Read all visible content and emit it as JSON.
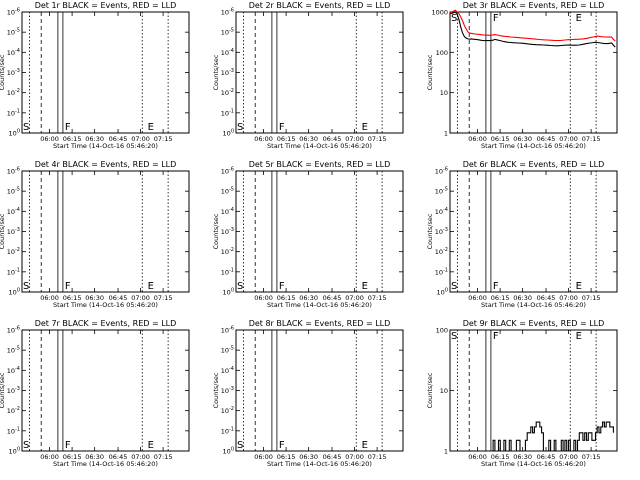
{
  "chart_data": [
    {
      "type": "line",
      "title": "Det 1r BLACK = Events, RED = LLD",
      "ylabel": "Counts/sec",
      "xlabel": "Start Time (14-Oct-16 05:46:20)",
      "yscale": "log",
      "ytick_labels": [
        "10^0",
        "10^-1",
        "10^-2",
        "10^-3",
        "10^-4",
        "10^-5",
        "10^-6"
      ],
      "xtick_labels": [
        "06:00",
        "06:15",
        "06:30",
        "06:45",
        "07:00",
        "07:15"
      ],
      "markers": [
        "S",
        "F",
        "E"
      ],
      "series": []
    },
    {
      "type": "line",
      "title": "Det 2r BLACK = Events, RED = LLD",
      "ylabel": "Counts/sec",
      "xlabel": "Start Time (14-Oct-16 05:46:20)",
      "yscale": "log",
      "ytick_labels": [
        "10^0",
        "10^-1",
        "10^-2",
        "10^-3",
        "10^-4",
        "10^-5",
        "10^-6"
      ],
      "xtick_labels": [
        "06:00",
        "06:15",
        "06:30",
        "06:45",
        "07:00",
        "07:15"
      ],
      "markers": [
        "S",
        "F",
        "E"
      ],
      "series": []
    },
    {
      "type": "line",
      "title": "Det 3r BLACK = Events, RED = LLD",
      "ylabel": "Counts/sec",
      "xlabel": "Start Time (14-Oct-16 05:46:20)",
      "yscale": "log",
      "ytick_labels": [
        "1",
        "10",
        "100",
        "1000"
      ],
      "xtick_labels": [
        "06:00",
        "06:15",
        "06:30",
        "06:45",
        "07:00",
        "07:15"
      ],
      "markers": [
        "S",
        "F",
        "E"
      ],
      "series": [
        {
          "color": "#000000",
          "x": [
            0,
            2,
            3,
            4,
            5,
            6,
            7,
            8,
            9,
            10,
            11,
            12,
            13,
            14,
            15,
            16,
            17,
            18,
            20,
            22,
            24,
            25,
            26,
            28,
            30,
            32,
            34,
            36,
            38,
            40,
            42,
            44,
            46,
            48,
            50,
            52,
            54,
            56,
            58,
            60,
            62,
            64,
            66,
            68,
            70,
            72,
            74,
            76,
            78,
            80,
            81,
            82,
            84,
            86,
            88,
            90,
            91,
            92
          ],
          "y": [
            900,
            960,
            1000,
            880,
            640,
            420,
            300,
            245,
            225,
            215,
            212,
            215,
            212,
            210,
            207,
            205,
            200,
            198,
            195,
            195,
            200,
            210,
            205,
            195,
            185,
            178,
            175,
            172,
            170,
            168,
            165,
            160,
            157,
            155,
            154,
            152,
            150,
            148,
            146,
            145,
            148,
            150,
            152,
            150,
            150,
            152,
            158,
            165,
            170,
            175,
            178,
            175,
            170,
            165,
            165,
            170,
            150,
            135
          ]
        },
        {
          "color": "#ff0000",
          "x": [
            0,
            2,
            3,
            4,
            5,
            6,
            7,
            8,
            9,
            10,
            11,
            12,
            13,
            14,
            15,
            16,
            17,
            18,
            20,
            22,
            24,
            25,
            26,
            28,
            30,
            32,
            34,
            36,
            38,
            40,
            42,
            44,
            46,
            48,
            50,
            52,
            54,
            56,
            58,
            60,
            62,
            64,
            66,
            68,
            70,
            72,
            74,
            76,
            78,
            80,
            81,
            82,
            84,
            86,
            88,
            90,
            91,
            92
          ],
          "y": [
            960,
            1050,
            1100,
            1000,
            900,
            750,
            600,
            460,
            380,
            320,
            300,
            295,
            290,
            285,
            282,
            280,
            275,
            270,
            268,
            265,
            270,
            275,
            270,
            258,
            250,
            245,
            240,
            236,
            232,
            228,
            224,
            220,
            216,
            212,
            208,
            205,
            202,
            200,
            198,
            196,
            198,
            202,
            206,
            208,
            210,
            212,
            215,
            222,
            232,
            242,
            248,
            252,
            246,
            240,
            238,
            240,
            210,
            190
          ]
        }
      ]
    },
    {
      "type": "line",
      "title": "Det 4r BLACK = Events, RED = LLD",
      "ylabel": "Counts/sec",
      "xlabel": "Start Time (14-Oct-16 05:46:20)",
      "yscale": "log",
      "ytick_labels": [
        "10^0",
        "10^-1",
        "10^-2",
        "10^-3",
        "10^-4",
        "10^-5",
        "10^-6"
      ],
      "xtick_labels": [
        "06:00",
        "06:15",
        "06:30",
        "06:45",
        "07:00",
        "07:15"
      ],
      "markers": [
        "S",
        "F",
        "E"
      ],
      "series": []
    },
    {
      "type": "line",
      "title": "Det 5r BLACK = Events, RED = LLD",
      "ylabel": "Counts/sec",
      "xlabel": "Start Time (14-Oct-16 05:46:20)",
      "yscale": "log",
      "ytick_labels": [
        "10^0",
        "10^-1",
        "10^-2",
        "10^-3",
        "10^-4",
        "10^-5",
        "10^-6"
      ],
      "xtick_labels": [
        "06:00",
        "06:15",
        "06:30",
        "06:45",
        "07:00",
        "07:15"
      ],
      "markers": [
        "S",
        "F",
        "E"
      ],
      "series": []
    },
    {
      "type": "line",
      "title": "Det 6r BLACK = Events, RED = LLD",
      "ylabel": "Counts/sec",
      "xlabel": "Start Time (14-Oct-16 05:46:20)",
      "yscale": "log",
      "ytick_labels": [
        "10^0",
        "10^-1",
        "10^-2",
        "10^-3",
        "10^-4",
        "10^-5",
        "10^-6"
      ],
      "xtick_labels": [
        "06:00",
        "06:15",
        "06:30",
        "06:45",
        "07:00",
        "07:15"
      ],
      "markers": [
        "S",
        "F",
        "E"
      ],
      "series": []
    },
    {
      "type": "line",
      "title": "Det 7r BLACK = Events, RED = LLD",
      "ylabel": "Counts/sec",
      "xlabel": "Start Time (14-Oct-16 05:46:20)",
      "yscale": "log",
      "ytick_labels": [
        "10^0",
        "10^-1",
        "10^-2",
        "10^-3",
        "10^-4",
        "10^-5",
        "10^-6"
      ],
      "xtick_labels": [
        "06:00",
        "06:15",
        "06:30",
        "06:45",
        "07:00",
        "07:15"
      ],
      "markers": [
        "S",
        "F",
        "E"
      ],
      "series": []
    },
    {
      "type": "line",
      "title": "Det 8r BLACK = Events, RED = LLD",
      "ylabel": "Counts/sec",
      "xlabel": "Start Time (14-Oct-16 05:46:20)",
      "yscale": "log",
      "ytick_labels": [
        "10^0",
        "10^-1",
        "10^-2",
        "10^-3",
        "10^-4",
        "10^-5",
        "10^-6"
      ],
      "xtick_labels": [
        "06:00",
        "06:15",
        "06:30",
        "06:45",
        "07:00",
        "07:15"
      ],
      "markers": [
        "S",
        "F",
        "E"
      ],
      "series": []
    },
    {
      "type": "line",
      "title": "Det 9r BLACK = Events, RED = LLD",
      "ylabel": "Counts/sec",
      "xlabel": "Start Time (14-Oct-16 05:46:20)",
      "yscale": "log",
      "ytick_labels": [
        "1",
        "10",
        "100"
      ],
      "xtick_labels": [
        "06:00",
        "06:15",
        "06:30",
        "06:45",
        "07:00",
        "07:15"
      ],
      "markers": [
        "S",
        "F",
        "E"
      ],
      "series": [
        {
          "color": "#000000",
          "step": true,
          "x": [
            0,
            1,
            2,
            3,
            4,
            5,
            6,
            7,
            8,
            9,
            10,
            11,
            12,
            13,
            14,
            15,
            16,
            17,
            18,
            19,
            20,
            21,
            22,
            23,
            24,
            25,
            26,
            27,
            28,
            29,
            30,
            31,
            32,
            33,
            34,
            35,
            36,
            37,
            38,
            39,
            40,
            41,
            42,
            43,
            44,
            45,
            46,
            47,
            48,
            49,
            50,
            51,
            52,
            53,
            54,
            55,
            56,
            57,
            58,
            59,
            60,
            61,
            62,
            63,
            64,
            65,
            66,
            67,
            68,
            69,
            70,
            71,
            72,
            73,
            74,
            75,
            76,
            77,
            78,
            79,
            80,
            81,
            82,
            83,
            84,
            85,
            86,
            87,
            88,
            89,
            90,
            91
          ],
          "y": [
            1,
            1,
            1,
            1,
            1,
            1,
            1,
            1,
            1,
            1,
            1,
            1,
            1,
            1,
            1,
            1,
            1,
            1,
            1,
            1,
            1,
            1,
            1,
            1,
            1.5,
            1,
            1,
            1.5,
            1,
            1,
            1.5,
            1,
            1,
            1.5,
            1,
            1,
            1,
            1.5,
            1.5,
            1,
            1,
            1,
            1.5,
            2,
            2,
            2.5,
            2,
            2.5,
            3,
            3,
            2.5,
            2,
            1,
            1,
            1,
            1.5,
            1,
            1,
            1.5,
            1,
            1,
            1,
            1.5,
            1,
            1.5,
            1,
            1.5,
            1,
            1,
            1.5,
            1,
            1.5,
            2,
            2,
            1.5,
            2,
            1.5,
            2,
            2,
            1.5,
            1.5,
            2,
            2.5,
            2,
            2.5,
            3,
            2.5,
            3,
            3,
            2.5,
            2.5,
            2
          ]
        }
      ]
    }
  ]
}
